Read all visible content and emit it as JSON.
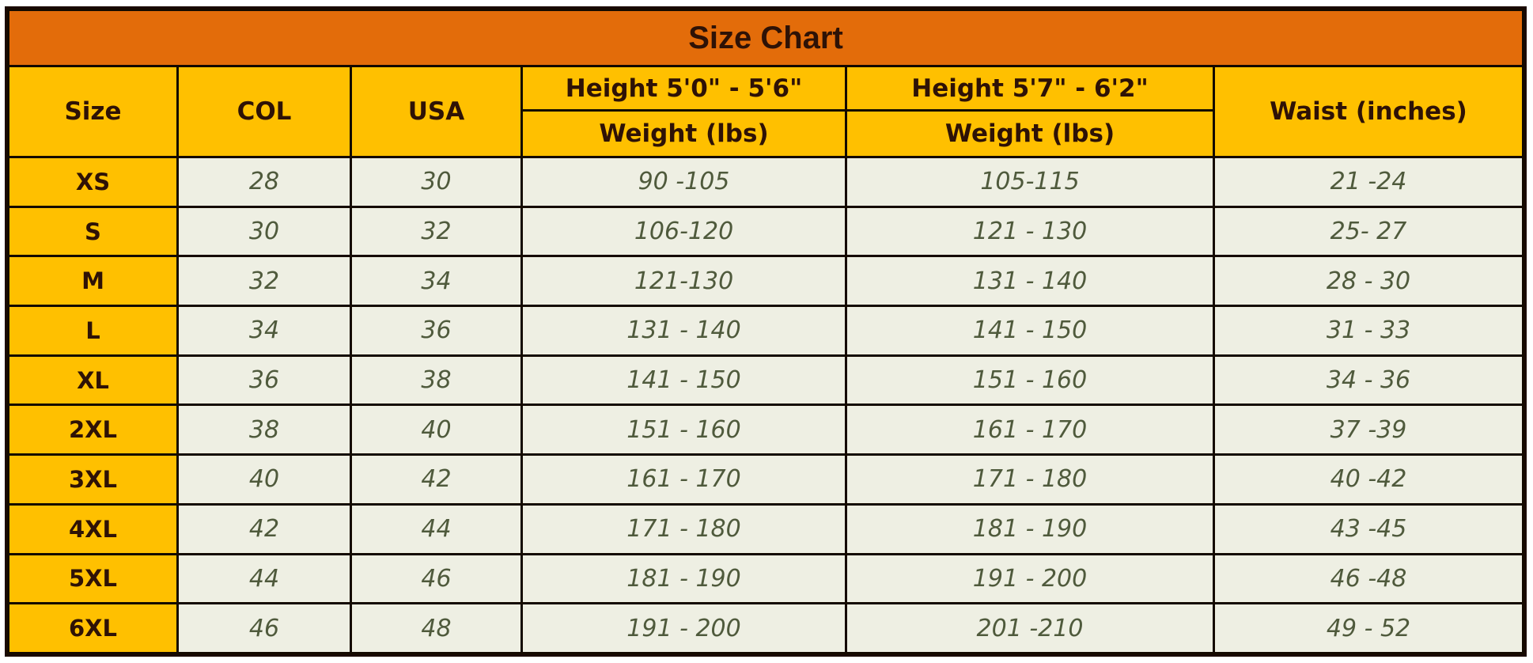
{
  "title": "Size Chart",
  "headers": {
    "size": "Size",
    "col": "COL",
    "usa": "USA",
    "height_short": "Height 5'0\" - 5'6\"",
    "height_tall": "Height 5'7\" - 6'2\"",
    "weight_short": "Weight (lbs)",
    "weight_tall": "Weight (lbs)",
    "waist": "Waist (inches)"
  },
  "rows": [
    {
      "size": "XS",
      "col": "28",
      "usa": "30",
      "weight_short": "90 -105",
      "weight_tall": "105-115",
      "waist": "21 -24"
    },
    {
      "size": "S",
      "col": "30",
      "usa": "32",
      "weight_short": "106-120",
      "weight_tall": "121 - 130",
      "waist": "25- 27"
    },
    {
      "size": "M",
      "col": "32",
      "usa": "34",
      "weight_short": "121-130",
      "weight_tall": "131 - 140",
      "waist": "28 - 30"
    },
    {
      "size": "L",
      "col": "34",
      "usa": "36",
      "weight_short": "131 - 140",
      "weight_tall": "141 - 150",
      "waist": "31 - 33"
    },
    {
      "size": "XL",
      "col": "36",
      "usa": "38",
      "weight_short": "141 - 150",
      "weight_tall": "151 - 160",
      "waist": "34 - 36"
    },
    {
      "size": "2XL",
      "col": "38",
      "usa": "40",
      "weight_short": "151 - 160",
      "weight_tall": "161 - 170",
      "waist": "37 -39"
    },
    {
      "size": "3XL",
      "col": "40",
      "usa": "42",
      "weight_short": "161 - 170",
      "weight_tall": "171 - 180",
      "waist": "40 -42"
    },
    {
      "size": "4XL",
      "col": "42",
      "usa": "44",
      "weight_short": "171 - 180",
      "weight_tall": "181 - 190",
      "waist": "43 -45"
    },
    {
      "size": "5XL",
      "col": "44",
      "usa": "46",
      "weight_short": "181 - 190",
      "weight_tall": "191 - 200",
      "waist": "46 -48"
    },
    {
      "size": "6XL",
      "col": "46",
      "usa": "48",
      "weight_short": "191 - 200",
      "weight_tall": "201 -210",
      "waist": "49 - 52"
    }
  ],
  "colors": {
    "title_bg": "#e36c0a",
    "header_bg": "#ffc000",
    "cell_bg": "#eeefe3",
    "cell_text": "#4f5a3c"
  }
}
